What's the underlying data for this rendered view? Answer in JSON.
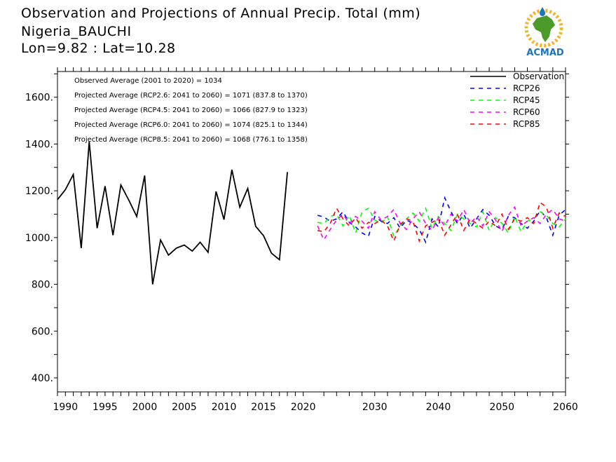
{
  "title": {
    "line1": "Observation and Projections of Annual Precip. Total (mm)",
    "line2": "Nigeria_BAUCHI",
    "line3": "Lon=9.82 : Lat=10.28"
  },
  "logo": {
    "text": "ACMAD"
  },
  "annotations": [
    "Observed Average (2001 to 2020) = 1034",
    "Projected Average (RCP2.6: 2041 to 2060) = 1071 (837.8 to 1370)",
    "Projected Average (RCP4.5: 2041 to 2060) = 1066 (827.9 to 1323)",
    "Projected Average (RCP6.0: 2041 to 2060) = 1074 (825.1 to 1344)",
    "Projected Average (RCP8.5: 2041 to 2060) = 1068 (776.1 to 1358)"
  ],
  "colors": {
    "Observation": "#000000",
    "RCP26": "#0000ff",
    "RCP45": "#00ff00",
    "RCP60": "#ff00ff",
    "RCP85": "#ff0000"
  },
  "chart_data": {
    "type": "line",
    "ylim": [
      340,
      1710
    ],
    "yticks": [
      400,
      600,
      800,
      1000,
      1200,
      1400,
      1600
    ],
    "ytick_labels": [
      "400.",
      "600.",
      "800.",
      "1000.",
      "1200.",
      "1400.",
      "1600."
    ],
    "xlim_obs": [
      1989,
      2021
    ],
    "xticks_obs": [
      1990,
      1995,
      2000,
      2005,
      2010,
      2015,
      2020
    ],
    "xlim_proj": [
      2020,
      2060
    ],
    "xticks_proj": [
      2030,
      2040,
      2050,
      2060
    ],
    "legend_position": "top-right",
    "series": [
      {
        "name": "Observation",
        "x": [
          1989,
          1990,
          1991,
          1992,
          1993,
          1994,
          1995,
          1996,
          1997,
          1998,
          1999,
          2000,
          2001,
          2002,
          2003,
          2004,
          2005,
          2006,
          2007,
          2008,
          2009,
          2010,
          2011,
          2012,
          2013,
          2014,
          2015,
          2016,
          2017,
          2018,
          2019,
          2020
        ],
        "values": [
          1162,
          1205,
          1270,
          955,
          1410,
          1040,
          1220,
          1010,
          1225,
          1160,
          1090,
          1265,
          800,
          990,
          925,
          955,
          968,
          942,
          980,
          937,
          1197,
          1077,
          1290,
          1130,
          1210,
          1048,
          1008,
          933,
          905,
          1280,
          null,
          null
        ]
      },
      {
        "name": "RCP26",
        "x": [
          2021,
          2022,
          2023,
          2024,
          2025,
          2026,
          2027,
          2028,
          2029,
          2030,
          2031,
          2032,
          2033,
          2034,
          2035,
          2036,
          2037,
          2038,
          2039,
          2040,
          2041,
          2042,
          2043,
          2044,
          2045,
          2046,
          2047,
          2048,
          2049,
          2050,
          2051,
          2052,
          2053,
          2054,
          2055,
          2056,
          2057,
          2058,
          2059,
          2060
        ],
        "values": [
          1095,
          1088,
          1070,
          1080,
          1110,
          1065,
          1045,
          1020,
          1005,
          1090,
          1070,
          1060,
          1085,
          1040,
          1075,
          1060,
          1035,
          980,
          1080,
          1045,
          1170,
          1110,
          1060,
          1100,
          1040,
          1080,
          1120,
          1095,
          1050,
          1035,
          1090,
          1085,
          1060,
          1040,
          1070,
          1115,
          1085,
          1010,
          1095,
          1120
        ]
      },
      {
        "name": "RCP45",
        "x": [
          2021,
          2022,
          2023,
          2024,
          2025,
          2026,
          2027,
          2028,
          2029,
          2030,
          2031,
          2032,
          2033,
          2034,
          2035,
          2036,
          2037,
          2038,
          2039,
          2040,
          2041,
          2042,
          2043,
          2044,
          2045,
          2046,
          2047,
          2048,
          2049,
          2050,
          2051,
          2052,
          2053,
          2054,
          2055,
          2056,
          2057,
          2058,
          2059,
          2060
        ],
        "values": [
          1065,
          1060,
          1090,
          1100,
          1050,
          1095,
          1020,
          1110,
          1125,
          1075,
          1060,
          1090,
          1005,
          1050,
          1080,
          1105,
          1070,
          1125,
          1040,
          1090,
          1060,
          1030,
          1100,
          1080,
          1060,
          1045,
          1110,
          1030,
          1085,
          1060,
          1020,
          1090,
          1025,
          1070,
          1080,
          1110,
          1095,
          1060,
          1045,
          1080
        ]
      },
      {
        "name": "RCP60",
        "x": [
          2021,
          2022,
          2023,
          2024,
          2025,
          2026,
          2027,
          2028,
          2029,
          2030,
          2031,
          2032,
          2033,
          2034,
          2035,
          2036,
          2037,
          2038,
          2039,
          2040,
          2041,
          2042,
          2043,
          2044,
          2045,
          2046,
          2047,
          2048,
          2049,
          2050,
          2051,
          2052,
          2053,
          2054,
          2055,
          2056,
          2057,
          2058,
          2059,
          2060
        ],
        "values": [
          1050,
          990,
          1035,
          1075,
          1100,
          1060,
          1090,
          1070,
          1040,
          1110,
          1075,
          1090,
          1120,
          1060,
          1035,
          1080,
          1110,
          1060,
          1030,
          1085,
          1050,
          1100,
          1070,
          1120,
          1060,
          1090,
          1050,
          1110,
          1075,
          1025,
          1095,
          1130,
          1050,
          1070,
          1085,
          1060,
          1100,
          1120,
          1080,
          1070
        ]
      },
      {
        "name": "RCP85",
        "x": [
          2021,
          2022,
          2023,
          2024,
          2025,
          2026,
          2027,
          2028,
          2029,
          2030,
          2031,
          2032,
          2033,
          2034,
          2035,
          2036,
          2037,
          2038,
          2039,
          2040,
          2041,
          2042,
          2043,
          2044,
          2045,
          2046,
          2047,
          2048,
          2049,
          2050,
          2051,
          2052,
          2053,
          2054,
          2055,
          2056,
          2057,
          2058,
          2059,
          2060
        ],
        "values": [
          1030,
          1025,
          1060,
          1125,
          1080,
          1050,
          1085,
          1040,
          1065,
          1060,
          1075,
          1050,
          985,
          1055,
          1080,
          1070,
          985,
          1050,
          1065,
          1080,
          1010,
          1055,
          1100,
          1030,
          1080,
          1060,
          1040,
          1070,
          1050,
          1100,
          1035,
          1080,
          1070,
          1085,
          1060,
          1150,
          1130,
          1040,
          1105,
          1090
        ]
      }
    ]
  }
}
